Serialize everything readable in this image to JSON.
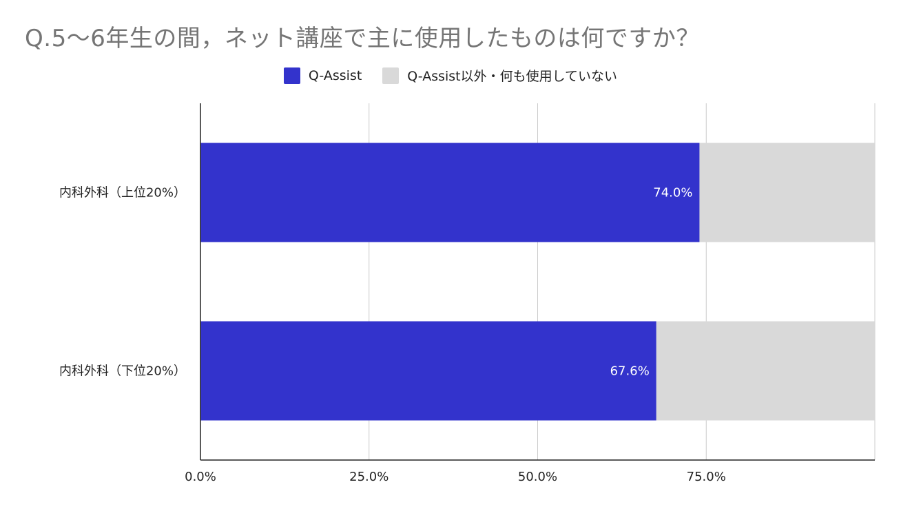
{
  "chart_data": {
    "type": "bar",
    "orientation": "horizontal",
    "stacked": true,
    "title": "Q.5〜6年生の間，ネット講座で主に使用したものは何ですか？",
    "categories": [
      "内科外科（上位20%）",
      "内科外科（下位20%）"
    ],
    "series": [
      {
        "name": "Q-Assist",
        "values": [
          74.0,
          67.6
        ],
        "color": "#3333cc",
        "data_labels": [
          "74.0%",
          "67.6%"
        ]
      },
      {
        "name": "Q-Assist以外・何も使用していない",
        "values": [
          26.0,
          32.4
        ],
        "color": "#d9d9d9"
      }
    ],
    "xlim": [
      0,
      100
    ],
    "x_ticks": [
      "0.0%",
      "25.0%",
      "50.0%",
      "75.0%"
    ],
    "x_tick_values": [
      0,
      25,
      50,
      75
    ],
    "grid": true,
    "legend_position": "top"
  }
}
